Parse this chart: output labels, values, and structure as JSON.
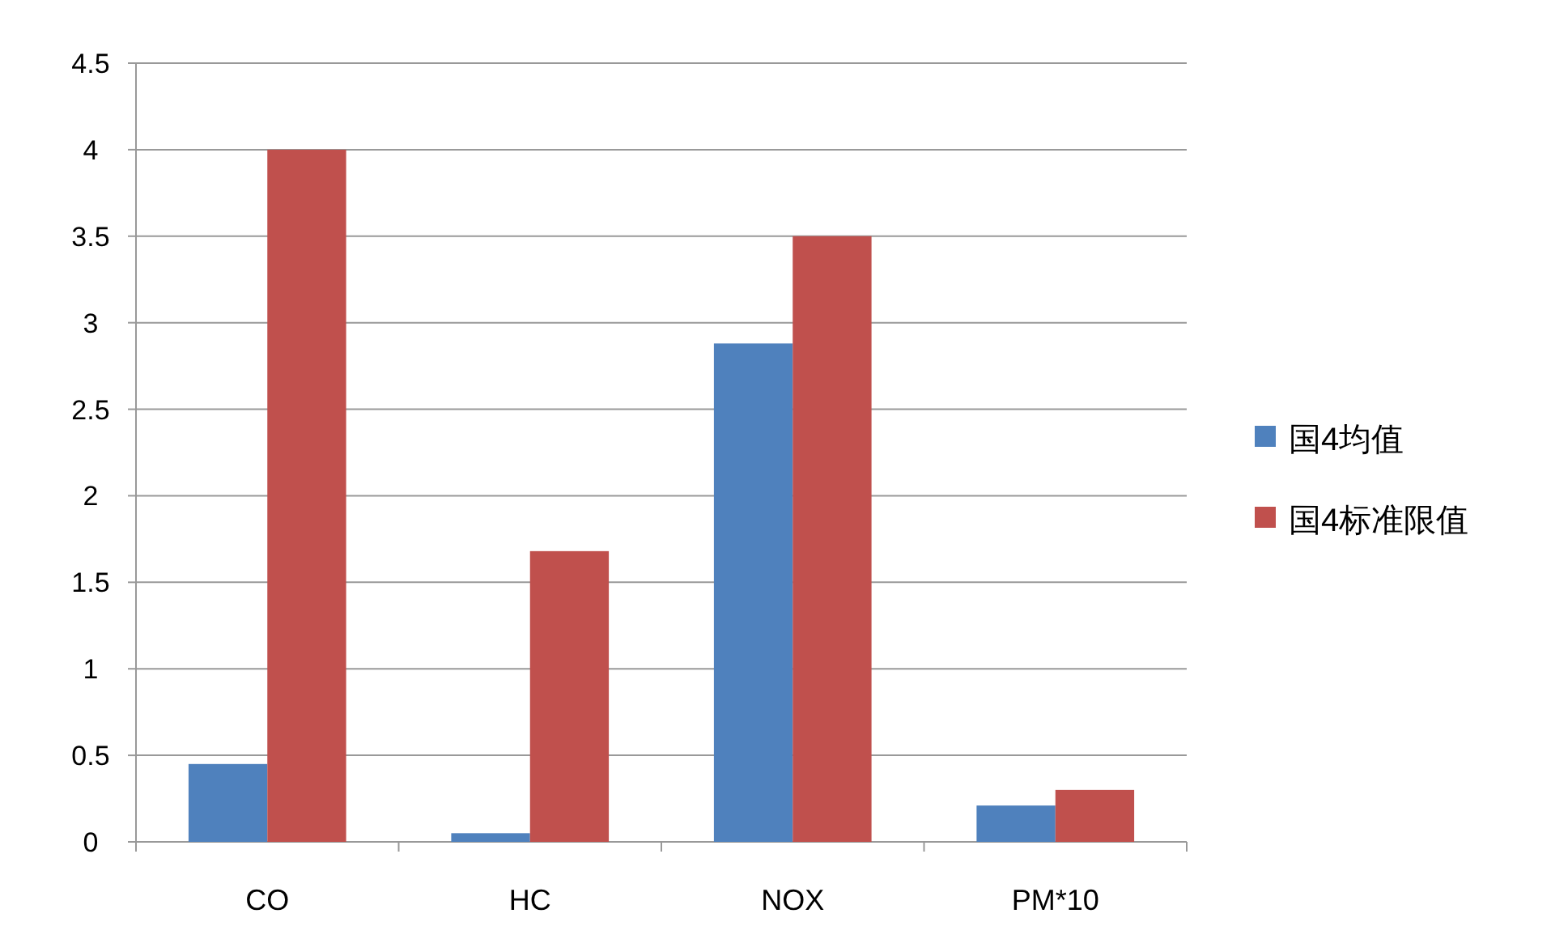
{
  "chart_data": {
    "type": "bar",
    "categories": [
      "CO",
      "HC",
      "NOX",
      "PM*10"
    ],
    "series": [
      {
        "name": "国4均值",
        "color": "#4f81bd",
        "values": [
          0.45,
          0.05,
          2.88,
          0.21
        ]
      },
      {
        "name": "国4标准限值",
        "color": "#c0504d",
        "values": [
          4,
          1.68,
          3.5,
          0.3
        ]
      }
    ],
    "ylim": [
      0,
      4.5
    ],
    "yticks": [
      0,
      0.5,
      1,
      1.5,
      2,
      2.5,
      3,
      3.5,
      4,
      4.5
    ],
    "grid": "y",
    "legend": "right"
  }
}
